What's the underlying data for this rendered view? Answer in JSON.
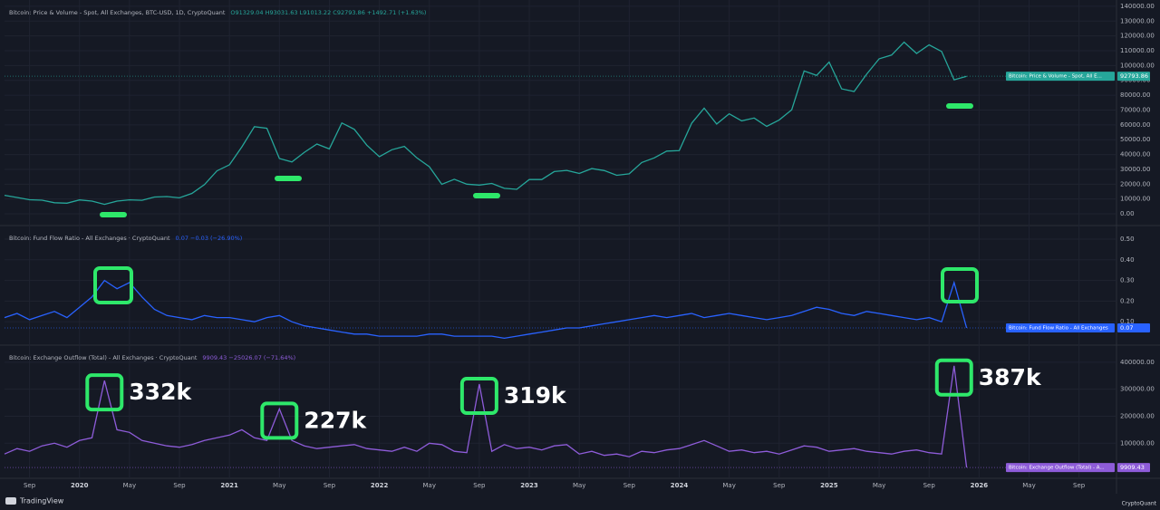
{
  "chart_data": [
    {
      "type": "line",
      "title": "Bitcoin: Price & Volume - Spot, All Exchanges, BTC-USD, 1D, CryptoQuant",
      "readout": "O91329.04 H93031.63 L91013.22 C92793.86 +1492.71 (+1.63%)",
      "x": [
        "2019-07",
        "2019-08",
        "2019-09",
        "2019-10",
        "2019-11",
        "2019-12",
        "2020-01",
        "2020-02",
        "2020-03",
        "2020-04",
        "2020-05",
        "2020-06",
        "2020-07",
        "2020-08",
        "2020-09",
        "2020-10",
        "2020-11",
        "2020-12",
        "2021-01",
        "2021-02",
        "2021-03",
        "2021-04",
        "2021-05",
        "2021-06",
        "2021-07",
        "2021-08",
        "2021-09",
        "2021-10",
        "2021-11",
        "2021-12",
        "2022-01",
        "2022-02",
        "2022-03",
        "2022-04",
        "2022-05",
        "2022-06",
        "2022-07",
        "2022-08",
        "2022-09",
        "2022-10",
        "2022-11",
        "2022-12",
        "2023-01",
        "2023-02",
        "2023-03",
        "2023-04",
        "2023-05",
        "2023-06",
        "2023-07",
        "2023-08",
        "2023-09",
        "2023-10",
        "2023-11",
        "2023-12",
        "2024-01",
        "2024-02",
        "2024-03",
        "2024-04",
        "2024-05",
        "2024-06",
        "2024-07",
        "2024-08",
        "2024-09",
        "2024-10",
        "2024-11",
        "2024-12",
        "2025-01",
        "2025-02",
        "2025-03",
        "2025-04",
        "2025-05",
        "2025-06",
        "2025-07",
        "2025-08",
        "2025-09",
        "2025-10",
        "2025-11",
        "2025-12"
      ],
      "series": [
        {
          "name": "Bitcoin: Price & Volume - Spot, All E...",
          "color": "#26a69a",
          "values": [
            12500,
            11000,
            9500,
            9200,
            7500,
            7200,
            9350,
            8600,
            6400,
            8600,
            9450,
            9140,
            11350,
            11650,
            10780,
            13800,
            19700,
            29000,
            33100,
            45200,
            58800,
            57700,
            37300,
            35000,
            41500,
            47100,
            43800,
            61300,
            57000,
            46300,
            38500,
            43200,
            45500,
            37700,
            31800,
            19900,
            23300,
            20000,
            19400,
            20500,
            17200,
            16500,
            23100,
            23100,
            28500,
            29300,
            27200,
            30500,
            29200,
            26000,
            27000,
            34600,
            37700,
            42300,
            42600,
            61200,
            71300,
            60600,
            67500,
            62700,
            64600,
            59000,
            63300,
            70200,
            96400,
            93400,
            102400,
            84300,
            82500,
            94200,
            104600,
            107100,
            115800,
            108200,
            114000,
            109500,
            90400,
            92793.86
          ]
        }
      ],
      "xlim": [
        "2019-07",
        "2026-12"
      ],
      "ylim": [
        -7300,
        143000
      ],
      "yticks": [
        {
          "value": 0,
          "label": "0.00"
        },
        {
          "value": 10000,
          "label": "10000.00"
        },
        {
          "value": 20000,
          "label": "20000.00"
        },
        {
          "value": 30000,
          "label": "30000.00"
        },
        {
          "value": 40000,
          "label": "40000.00"
        },
        {
          "value": 50000,
          "label": "50000.00"
        },
        {
          "value": 60000,
          "label": "60000.00"
        },
        {
          "value": 70000,
          "label": "70000.00"
        },
        {
          "value": 80000,
          "label": "80000.00"
        },
        {
          "value": 90000,
          "label": "90000.00"
        },
        {
          "value": 100000,
          "label": "100000.00"
        },
        {
          "value": 110000,
          "label": "110000.00"
        },
        {
          "value": 120000,
          "label": "120000.00"
        },
        {
          "value": 130000,
          "label": "130000.00"
        },
        {
          "value": 140000,
          "label": "140000.00"
        }
      ],
      "grid": true
    },
    {
      "type": "line",
      "title": "Bitcoin: Fund Flow Ratio - All Exchanges · CryptoQuant",
      "readout": "0.07 −0.03 (−26.90%)",
      "x": [
        "2019-07",
        "2019-08",
        "2019-09",
        "2019-10",
        "2019-11",
        "2019-12",
        "2020-01",
        "2020-02",
        "2020-03",
        "2020-04",
        "2020-05",
        "2020-06",
        "2020-07",
        "2020-08",
        "2020-09",
        "2020-10",
        "2020-11",
        "2020-12",
        "2021-01",
        "2021-02",
        "2021-03",
        "2021-04",
        "2021-05",
        "2021-06",
        "2021-07",
        "2021-08",
        "2021-09",
        "2021-10",
        "2021-11",
        "2021-12",
        "2022-01",
        "2022-02",
        "2022-03",
        "2022-04",
        "2022-05",
        "2022-06",
        "2022-07",
        "2022-08",
        "2022-09",
        "2022-10",
        "2022-11",
        "2022-12",
        "2023-01",
        "2023-02",
        "2023-03",
        "2023-04",
        "2023-05",
        "2023-06",
        "2023-07",
        "2023-08",
        "2023-09",
        "2023-10",
        "2023-11",
        "2023-12",
        "2024-01",
        "2024-02",
        "2024-03",
        "2024-04",
        "2024-05",
        "2024-06",
        "2024-07",
        "2024-08",
        "2024-09",
        "2024-10",
        "2024-11",
        "2024-12",
        "2025-01",
        "2025-02",
        "2025-03",
        "2025-04",
        "2025-05",
        "2025-06",
        "2025-07",
        "2025-08",
        "2025-09",
        "2025-10",
        "2025-11",
        "2025-12"
      ],
      "series": [
        {
          "name": "Bitcoin: Fund Flow Ratio - All Exchanges",
          "color": "#2962ff",
          "values": [
            0.12,
            0.14,
            0.11,
            0.13,
            0.15,
            0.12,
            0.17,
            0.22,
            0.3,
            0.26,
            0.29,
            0.22,
            0.16,
            0.13,
            0.12,
            0.11,
            0.13,
            0.12,
            0.12,
            0.11,
            0.1,
            0.12,
            0.13,
            0.1,
            0.08,
            0.07,
            0.06,
            0.05,
            0.04,
            0.04,
            0.03,
            0.03,
            0.03,
            0.03,
            0.04,
            0.04,
            0.03,
            0.03,
            0.03,
            0.03,
            0.02,
            0.03,
            0.04,
            0.05,
            0.06,
            0.07,
            0.07,
            0.08,
            0.09,
            0.1,
            0.11,
            0.12,
            0.13,
            0.12,
            0.13,
            0.14,
            0.12,
            0.13,
            0.14,
            0.13,
            0.12,
            0.11,
            0.12,
            0.13,
            0.15,
            0.17,
            0.16,
            0.14,
            0.13,
            0.15,
            0.14,
            0.13,
            0.12,
            0.11,
            0.12,
            0.1,
            0.29,
            0.07
          ]
        }
      ],
      "xlim": [
        "2019-07",
        "2026-12"
      ],
      "ylim": [
        -0.009,
        0.557
      ],
      "yticks": [
        {
          "value": 0.1,
          "label": "0.10"
        },
        {
          "value": 0.2,
          "label": "0.20"
        },
        {
          "value": 0.3,
          "label": "0.30"
        },
        {
          "value": 0.4,
          "label": "0.40"
        },
        {
          "value": 0.5,
          "label": "0.50"
        }
      ],
      "grid": true
    },
    {
      "type": "line",
      "title": "Bitcoin: Exchange Outflow (Total) - All Exchanges · CryptoQuant",
      "readout": "9909.43 −25026.07 (−71.64%)",
      "x": [
        "2019-07",
        "2019-08",
        "2019-09",
        "2019-10",
        "2019-11",
        "2019-12",
        "2020-01",
        "2020-02",
        "2020-03",
        "2020-04",
        "2020-05",
        "2020-06",
        "2020-07",
        "2020-08",
        "2020-09",
        "2020-10",
        "2020-11",
        "2020-12",
        "2021-01",
        "2021-02",
        "2021-03",
        "2021-04",
        "2021-05",
        "2021-06",
        "2021-07",
        "2021-08",
        "2021-09",
        "2021-10",
        "2021-11",
        "2021-12",
        "2022-01",
        "2022-02",
        "2022-03",
        "2022-04",
        "2022-05",
        "2022-06",
        "2022-07",
        "2022-08",
        "2022-09",
        "2022-10",
        "2022-11",
        "2022-12",
        "2023-01",
        "2023-02",
        "2023-03",
        "2023-04",
        "2023-05",
        "2023-06",
        "2023-07",
        "2023-08",
        "2023-09",
        "2023-10",
        "2023-11",
        "2023-12",
        "2024-01",
        "2024-02",
        "2024-03",
        "2024-04",
        "2024-05",
        "2024-06",
        "2024-07",
        "2024-08",
        "2024-09",
        "2024-10",
        "2024-11",
        "2024-12",
        "2025-01",
        "2025-02",
        "2025-03",
        "2025-04",
        "2025-05",
        "2025-06",
        "2025-07",
        "2025-08",
        "2025-09",
        "2025-10",
        "2025-11",
        "2025-12"
      ],
      "series": [
        {
          "name": "Bitcoin: Exchange Outflow (Total) - A...",
          "color": "#8e5cd9",
          "values": [
            60000,
            80000,
            70000,
            90000,
            100000,
            85000,
            110000,
            120000,
            332000,
            150000,
            140000,
            110000,
            100000,
            90000,
            85000,
            95000,
            110000,
            120000,
            130000,
            150000,
            120000,
            110000,
            227000,
            110000,
            90000,
            80000,
            85000,
            90000,
            95000,
            80000,
            75000,
            70000,
            85000,
            70000,
            100000,
            95000,
            70000,
            65000,
            319000,
            70000,
            95000,
            80000,
            85000,
            75000,
            90000,
            95000,
            60000,
            70000,
            55000,
            60000,
            50000,
            70000,
            65000,
            75000,
            80000,
            95000,
            110000,
            90000,
            70000,
            75000,
            65000,
            70000,
            60000,
            75000,
            90000,
            85000,
            70000,
            75000,
            80000,
            70000,
            65000,
            60000,
            70000,
            75000,
            65000,
            60000,
            387000,
            9909.43
          ]
        }
      ],
      "xlim": [
        "2019-07",
        "2026-12"
      ],
      "ylim": [
        -30000,
        456667
      ],
      "yticks": [
        {
          "value": 100000,
          "label": "100000.00"
        },
        {
          "value": 200000,
          "label": "200000.00"
        },
        {
          "value": 300000,
          "label": "300000.00"
        },
        {
          "value": 400000,
          "label": "400000.00"
        }
      ],
      "xticks": [
        {
          "value": "2019-09",
          "label": "Sep"
        },
        {
          "value": "2020-01",
          "label": "2020"
        },
        {
          "value": "2020-05",
          "label": "May"
        },
        {
          "value": "2020-09",
          "label": "Sep"
        },
        {
          "value": "2021-01",
          "label": "2021"
        },
        {
          "value": "2021-05",
          "label": "May"
        },
        {
          "value": "2021-09",
          "label": "Sep"
        },
        {
          "value": "2022-01",
          "label": "2022"
        },
        {
          "value": "2022-05",
          "label": "May"
        },
        {
          "value": "2022-09",
          "label": "Sep"
        },
        {
          "value": "2023-01",
          "label": "2023"
        },
        {
          "value": "2023-05",
          "label": "May"
        },
        {
          "value": "2023-09",
          "label": "Sep"
        },
        {
          "value": "2024-01",
          "label": "2024"
        },
        {
          "value": "2024-05",
          "label": "May"
        },
        {
          "value": "2024-09",
          "label": "Sep"
        },
        {
          "value": "2025-01",
          "label": "2025"
        },
        {
          "value": "2025-05",
          "label": "May"
        },
        {
          "value": "2025-09",
          "label": "Sep"
        },
        {
          "value": "2026-01",
          "label": "2026"
        },
        {
          "value": "2026-05",
          "label": "May"
        },
        {
          "value": "2026-09",
          "label": "Sep"
        }
      ],
      "annotations": [
        {
          "x": "2020-03",
          "value": 332000,
          "label": "332k"
        },
        {
          "x": "2021-05",
          "value": 227000,
          "label": "227k"
        },
        {
          "x": "2022-09",
          "value": 319000,
          "label": "319k"
        },
        {
          "x": "2025-11",
          "value": 387000,
          "label": "387k"
        }
      ],
      "grid": true
    }
  ],
  "footer": {
    "left": "TradingView",
    "right": "CryptoQuant"
  }
}
